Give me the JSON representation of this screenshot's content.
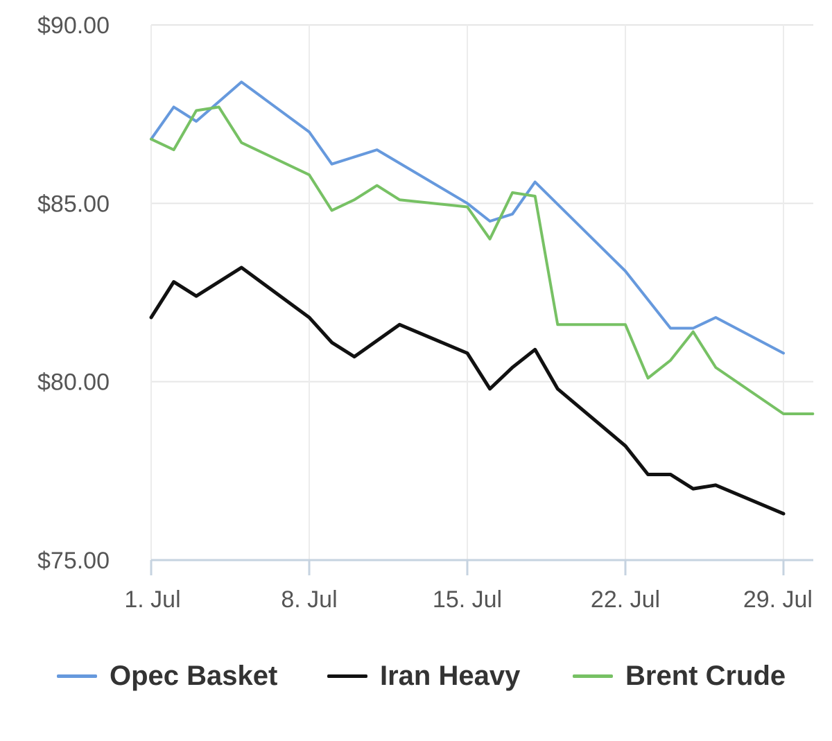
{
  "chart_data": {
    "type": "line",
    "y_tick_labels": [
      "$75.00",
      "$80.00",
      "$85.00",
      "$90.00"
    ],
    "y_ticks": [
      75,
      80,
      85,
      90
    ],
    "ylim": [
      75,
      90
    ],
    "x_tick_labels": [
      "1. Jul",
      "8. Jul",
      "15. Jul",
      "22. Jul",
      "29. Jul"
    ],
    "x_ticks": [
      1,
      8,
      15,
      22,
      29
    ],
    "xlim": [
      1,
      30.3
    ],
    "grid": true,
    "legend_position": "bottom",
    "series": [
      {
        "name": "Opec Basket",
        "color": "#6699dd",
        "x": [
          1,
          2,
          3,
          5,
          8,
          9,
          11,
          15,
          16,
          17,
          18,
          22,
          24,
          25,
          26,
          29
        ],
        "values": [
          86.8,
          87.7,
          87.3,
          88.4,
          87.0,
          86.1,
          86.5,
          85.0,
          84.5,
          84.7,
          85.6,
          83.1,
          81.5,
          81.5,
          81.8,
          80.8
        ]
      },
      {
        "name": "Iran Heavy",
        "color": "#111111",
        "x": [
          1,
          2,
          3,
          5,
          8,
          9,
          10,
          12,
          15,
          16,
          17,
          18,
          19,
          22,
          23,
          24,
          25,
          26,
          29
        ],
        "values": [
          81.8,
          82.8,
          82.4,
          83.2,
          81.8,
          81.1,
          80.7,
          81.6,
          80.8,
          79.8,
          80.4,
          80.9,
          79.8,
          78.2,
          77.4,
          77.4,
          77.0,
          77.1,
          76.3
        ]
      },
      {
        "name": "Brent Crude",
        "color": "#77c164",
        "x": [
          1,
          2,
          3,
          4,
          5,
          8,
          9,
          10,
          11,
          12,
          15,
          16,
          17,
          18,
          19,
          22,
          23,
          24,
          25,
          26,
          29,
          30.3
        ],
        "values": [
          86.8,
          86.5,
          87.6,
          87.7,
          86.7,
          85.8,
          84.8,
          85.1,
          85.5,
          85.1,
          84.9,
          84.0,
          85.3,
          85.2,
          81.6,
          81.6,
          80.1,
          80.6,
          81.4,
          80.4,
          79.1,
          79.1
        ]
      }
    ]
  }
}
